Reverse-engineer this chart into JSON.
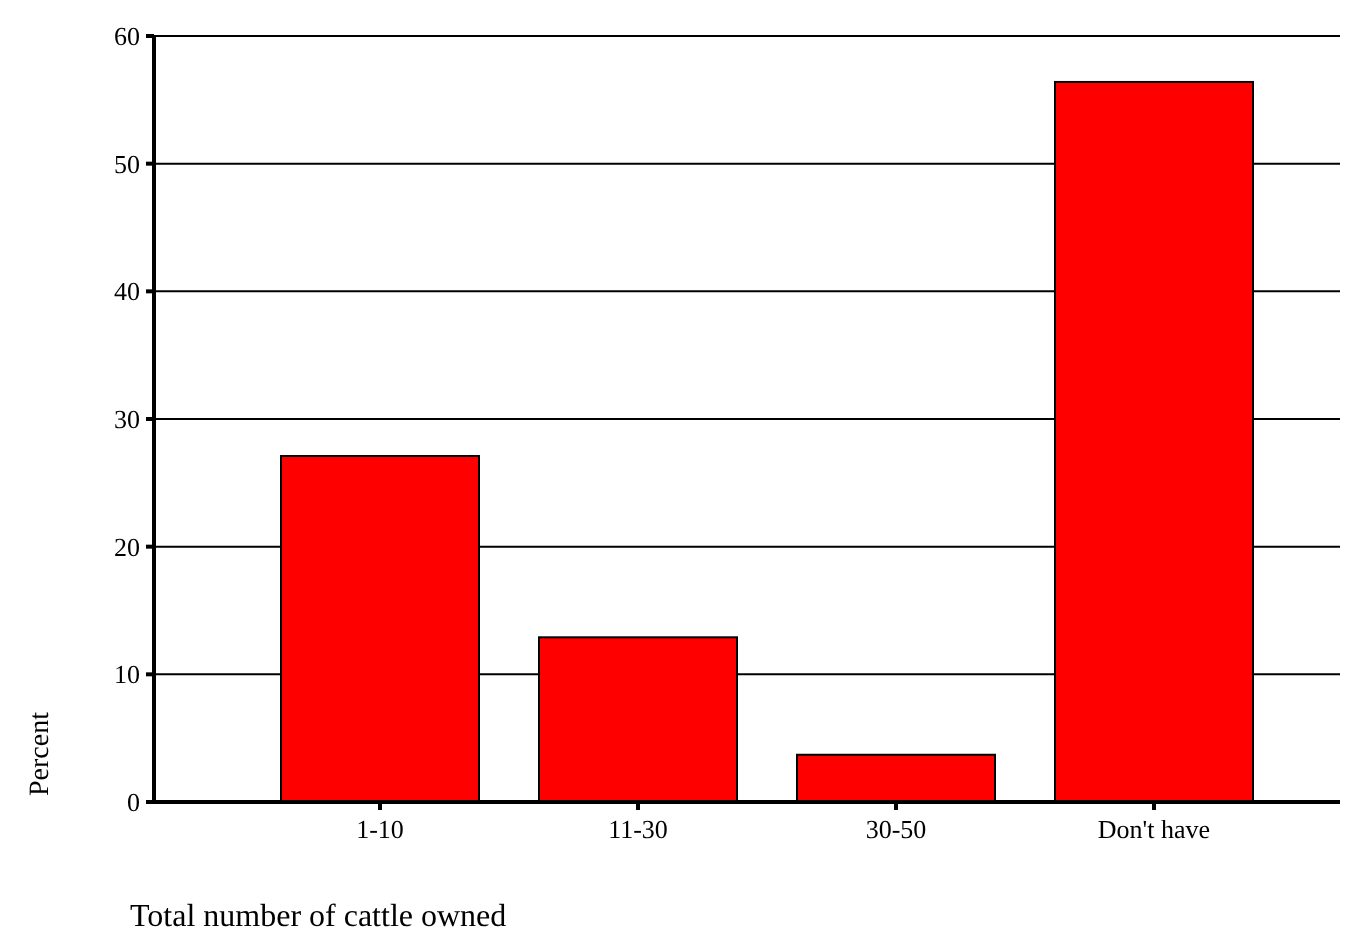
{
  "chart_data": {
    "type": "bar",
    "xlabel": "Total number of cattle owned",
    "ylabel": "Percent",
    "categories": [
      "1-10",
      "11-30",
      "30-50",
      "Don't have"
    ],
    "values": [
      27.1,
      12.9,
      3.7,
      56.4
    ],
    "color": "#ff0000",
    "ylim": [
      0,
      60
    ],
    "yticks": [
      0,
      10,
      20,
      30,
      40,
      50,
      60
    ],
    "grid": "y"
  }
}
